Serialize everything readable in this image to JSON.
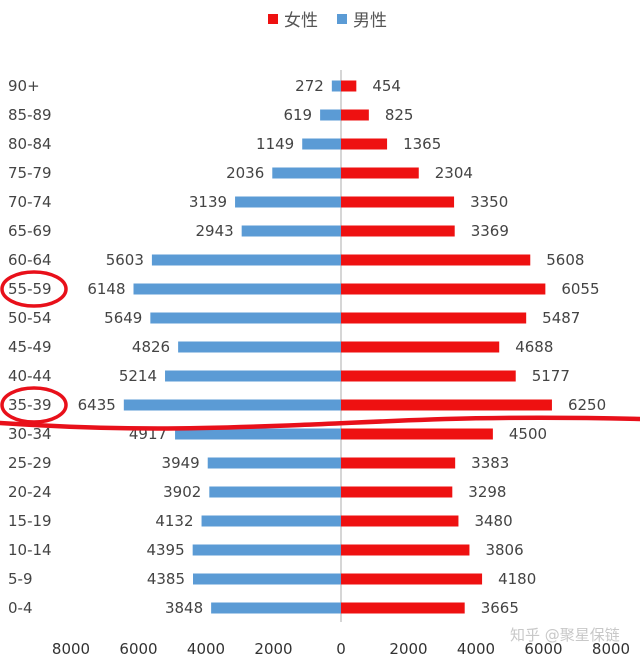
{
  "chart_data": {
    "type": "bar",
    "orientation": "horizontal-butterfly",
    "categories": [
      "0-4",
      "5-9",
      "10-14",
      "15-19",
      "20-24",
      "25-29",
      "30-34",
      "35-39",
      "40-44",
      "45-49",
      "50-54",
      "55-59",
      "60-64",
      "65-69",
      "70-74",
      "75-79",
      "80-84",
      "85-89",
      "90+"
    ],
    "series": [
      {
        "name": "女性",
        "color": "#ee1111",
        "side": "right",
        "values": [
          3665,
          4180,
          3806,
          3480,
          3298,
          3383,
          4500,
          6250,
          5177,
          4688,
          5487,
          6055,
          5608,
          3369,
          3350,
          2304,
          1365,
          825,
          454
        ]
      },
      {
        "name": "男性",
        "color": "#5b9bd5",
        "side": "left",
        "values": [
          3848,
          4385,
          4395,
          4132,
          3902,
          3949,
          4917,
          6435,
          5214,
          4826,
          5649,
          6148,
          5603,
          2943,
          3139,
          2036,
          1149,
          619,
          272
        ]
      }
    ],
    "x_ticks": [
      "8000",
      "6000",
      "4000",
      "2000",
      "0",
      "2000",
      "4000",
      "6000",
      "8000"
    ],
    "xlim": [
      -8000,
      8000
    ],
    "legend_position": "top-center",
    "highlighted_categories": [
      "55-59",
      "35-39"
    ],
    "annotation_color": "#e8101a"
  },
  "watermark": "知乎 @聚星保链"
}
